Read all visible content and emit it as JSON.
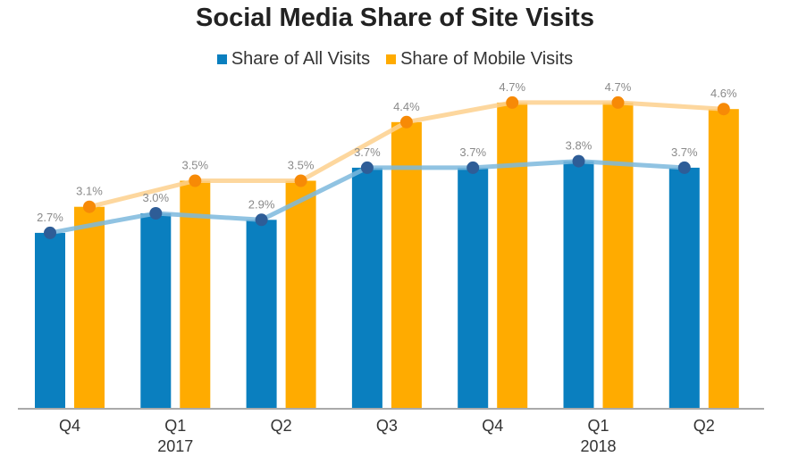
{
  "chart_data": {
    "type": "bar",
    "title": "Social Media Share of Site Visits",
    "categories": [
      "Q4",
      "Q1",
      "Q2",
      "Q3",
      "Q4",
      "Q1",
      "Q2"
    ],
    "year_labels": [
      "",
      "2017",
      "",
      "",
      "",
      "2018",
      ""
    ],
    "series": [
      {
        "name": "Share of All Visits",
        "values": [
          2.7,
          3.0,
          2.9,
          3.7,
          3.7,
          3.8,
          3.7
        ],
        "labels": [
          "2.7%",
          "3.0%",
          "2.9%",
          "3.7%",
          "3.7%",
          "3.8%",
          "3.7%"
        ],
        "color": "#0a7fbf",
        "line_color": "#7db9dd",
        "dot_color": "#2e5d97"
      },
      {
        "name": "Share of Mobile Visits",
        "values": [
          3.1,
          3.5,
          3.5,
          4.4,
          4.7,
          4.7,
          4.6
        ],
        "labels": [
          "3.1%",
          "3.5%",
          "3.5%",
          "4.4%",
          "4.7%",
          "4.7%",
          "4.6%"
        ],
        "color": "#ffab00",
        "line_color": "#fdd08d",
        "dot_color": "#f78a06"
      }
    ],
    "ylim": [
      0,
      4.8
    ],
    "grid": false,
    "legend": "top-center"
  }
}
